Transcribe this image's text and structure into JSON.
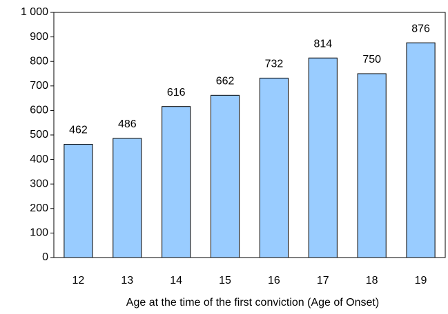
{
  "chart_data": {
    "type": "bar",
    "x_label": "Age at the time of the first conviction (Age of Onset)",
    "categories": [
      "12",
      "13",
      "14",
      "15",
      "16",
      "17",
      "18",
      "19"
    ],
    "values": [
      462,
      486,
      616,
      662,
      732,
      814,
      750,
      876
    ],
    "color": "#99ccff",
    "ylim": [
      0,
      1000
    ],
    "yticks": [
      0,
      100,
      200,
      300,
      400,
      500,
      600,
      700,
      800,
      900,
      {
        "value": 1000,
        "label": "1 000"
      }
    ],
    "grid": false
  }
}
